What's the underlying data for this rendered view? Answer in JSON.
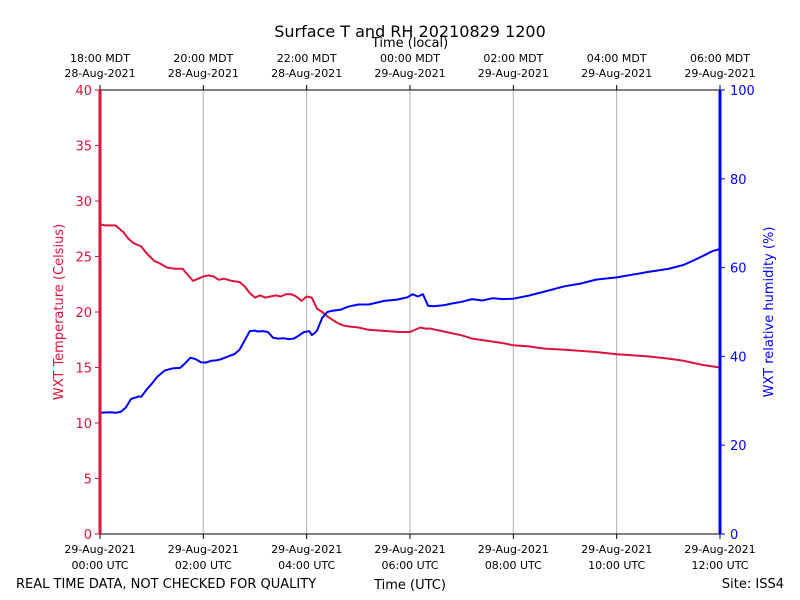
{
  "chart_data": {
    "type": "line",
    "title": "Surface T and RH 20210829 1200",
    "xlabel_bottom": "Time (UTC)",
    "xlabel_top": "Time (local)",
    "ylabel_left": "WXT Temperature (Celsius)",
    "ylabel_right": "WXT relative humidity (%)",
    "xlim_hours": [
      0,
      12
    ],
    "ylim_left": [
      0,
      40
    ],
    "ylim_right": [
      0,
      100
    ],
    "yticks_left": [
      0,
      5,
      10,
      15,
      20,
      25,
      30,
      35,
      40
    ],
    "yticks_right": [
      0,
      20,
      40,
      60,
      80,
      100
    ],
    "grid": "vertical",
    "colors": {
      "temperature": "#dc143c",
      "humidity": "#0000ff"
    },
    "bottom_ticks": [
      {
        "hour": 0,
        "line1": "29-Aug-2021",
        "line2": "00:00 UTC"
      },
      {
        "hour": 2,
        "line1": "29-Aug-2021",
        "line2": "02:00 UTC"
      },
      {
        "hour": 4,
        "line1": "29-Aug-2021",
        "line2": "04:00 UTC"
      },
      {
        "hour": 6,
        "line1": "29-Aug-2021",
        "line2": "06:00 UTC"
      },
      {
        "hour": 8,
        "line1": "29-Aug-2021",
        "line2": "08:00 UTC"
      },
      {
        "hour": 10,
        "line1": "29-Aug-2021",
        "line2": "10:00 UTC"
      },
      {
        "hour": 12,
        "line1": "29-Aug-2021",
        "line2": "12:00 UTC"
      }
    ],
    "top_ticks": [
      {
        "hour": 0,
        "line1": "18:00 MDT",
        "line2": "28-Aug-2021"
      },
      {
        "hour": 2,
        "line1": "20:00 MDT",
        "line2": "28-Aug-2021"
      },
      {
        "hour": 4,
        "line1": "22:00 MDT",
        "line2": "28-Aug-2021"
      },
      {
        "hour": 6,
        "line1": "00:00 MDT",
        "line2": "29-Aug-2021"
      },
      {
        "hour": 8,
        "line1": "02:00 MDT",
        "line2": "29-Aug-2021"
      },
      {
        "hour": 10,
        "line1": "04:00 MDT",
        "line2": "29-Aug-2021"
      },
      {
        "hour": 12,
        "line1": "06:00 MDT",
        "line2": "29-Aug-2021"
      }
    ],
    "series": [
      {
        "name": "WXT Temperature (Celsius)",
        "axis": "left",
        "x": [
          0,
          0.1,
          0.3,
          0.45,
          0.55,
          0.65,
          0.8,
          0.9,
          1.05,
          1.15,
          1.3,
          1.45,
          1.6,
          1.65,
          1.8,
          1.9,
          2.0,
          2.1,
          2.2,
          2.3,
          2.4,
          2.55,
          2.7,
          2.8,
          2.9,
          3.0,
          3.1,
          3.2,
          3.3,
          3.4,
          3.5,
          3.6,
          3.7,
          3.8,
          3.9,
          4.0,
          4.1,
          4.2,
          4.3,
          4.4,
          4.5,
          4.6,
          4.7,
          4.8,
          5.0,
          5.2,
          5.5,
          5.8,
          6.0,
          6.2,
          6.3,
          6.4,
          6.5,
          6.6,
          6.8,
          7.0,
          7.2,
          7.5,
          7.8,
          8.0,
          8.3,
          8.6,
          9.0,
          9.3,
          9.6,
          10.0,
          10.3,
          10.6,
          11.0,
          11.3,
          11.5,
          11.7,
          11.85,
          12.0
        ],
        "values": [
          27.9,
          27.8,
          27.8,
          27.2,
          26.6,
          26.2,
          25.9,
          25.3,
          24.6,
          24.4,
          24.0,
          23.9,
          23.9,
          23.6,
          22.8,
          23.0,
          23.2,
          23.3,
          23.2,
          22.9,
          23.0,
          22.8,
          22.7,
          22.3,
          21.7,
          21.3,
          21.5,
          21.3,
          21.4,
          21.5,
          21.4,
          21.6,
          21.6,
          21.4,
          21.0,
          21.4,
          21.3,
          20.3,
          20.0,
          19.6,
          19.3,
          19.0,
          18.8,
          18.7,
          18.6,
          18.4,
          18.3,
          18.2,
          18.2,
          18.6,
          18.5,
          18.5,
          18.4,
          18.3,
          18.1,
          17.9,
          17.6,
          17.4,
          17.2,
          17.0,
          16.9,
          16.7,
          16.6,
          16.5,
          16.4,
          16.2,
          16.1,
          16.0,
          15.8,
          15.6,
          15.4,
          15.2,
          15.1,
          15.0
        ]
      },
      {
        "name": "WXT relative humidity (%)",
        "axis": "right",
        "x": [
          0,
          0.2,
          0.3,
          0.4,
          0.5,
          0.6,
          0.75,
          0.8,
          0.9,
          1.0,
          1.1,
          1.25,
          1.4,
          1.55,
          1.65,
          1.75,
          1.85,
          1.95,
          2.05,
          2.15,
          2.25,
          2.35,
          2.5,
          2.6,
          2.7,
          2.8,
          2.9,
          3.0,
          3.05,
          3.15,
          3.25,
          3.35,
          3.45,
          3.55,
          3.65,
          3.75,
          3.85,
          3.95,
          4.05,
          4.1,
          4.15,
          4.2,
          4.3,
          4.4,
          4.5,
          4.65,
          4.8,
          5.0,
          5.2,
          5.5,
          5.75,
          5.95,
          6.05,
          6.15,
          6.25,
          6.35,
          6.45,
          6.55,
          6.65,
          6.8,
          7.0,
          7.2,
          7.4,
          7.6,
          7.8,
          8.0,
          8.3,
          8.6,
          9.0,
          9.3,
          9.6,
          10.0,
          10.3,
          10.6,
          11.0,
          11.3,
          11.5,
          11.7,
          11.85,
          12.0
        ],
        "values": [
          27.3,
          27.4,
          27.3,
          27.5,
          28.5,
          30.4,
          31.0,
          30.9,
          32.5,
          33.8,
          35.3,
          36.8,
          37.3,
          37.4,
          38.5,
          39.7,
          39.4,
          38.7,
          38.6,
          39.0,
          39.1,
          39.4,
          40.1,
          40.5,
          41.5,
          43.6,
          45.7,
          45.8,
          45.6,
          45.7,
          45.5,
          44.2,
          44.0,
          44.1,
          43.9,
          44.0,
          44.7,
          45.5,
          45.7,
          44.8,
          45.2,
          45.8,
          48.7,
          50.0,
          50.3,
          50.5,
          51.2,
          51.7,
          51.7,
          52.5,
          52.8,
          53.3,
          54.0,
          53.5,
          54.0,
          51.4,
          51.3,
          51.4,
          51.5,
          51.9,
          52.3,
          52.9,
          52.6,
          53.1,
          52.9,
          53.0,
          53.7,
          54.6,
          55.8,
          56.4,
          57.3,
          57.8,
          58.4,
          59.0,
          59.7,
          60.6,
          61.7,
          62.8,
          63.7,
          64.2
        ]
      }
    ]
  },
  "footer": {
    "disclaimer": "REAL TIME DATA, NOT CHECKED FOR QUALITY",
    "site": "Site: ISS4"
  }
}
